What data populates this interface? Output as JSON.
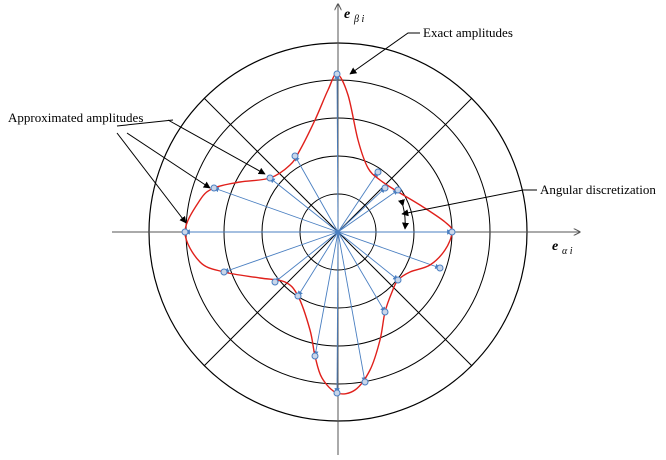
{
  "labels": {
    "exact": "Exact amplitudes",
    "approximated": "Approximated amplitudes",
    "angular": "Angular discretization"
  },
  "axes": {
    "x_main": "e",
    "x_sub": "α i",
    "y_main": "e",
    "y_sub": "β i"
  },
  "colors": {
    "rings": "#000000",
    "axes": "#555555",
    "spokes": "#4a7fc1",
    "curve": "#e0201b",
    "node_fill": "#c9d6ea",
    "node_stroke": "#4a7fc1"
  }
}
